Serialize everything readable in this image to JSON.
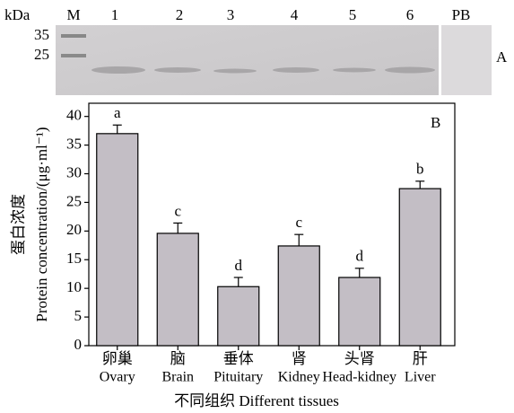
{
  "blot": {
    "unit": "kDa",
    "ladder": "M",
    "markers": [
      "35",
      "25"
    ],
    "lanes": [
      "1",
      "2",
      "3",
      "4",
      "5",
      "6"
    ],
    "control": "PB",
    "panel_label": "A"
  },
  "chart_data": {
    "type": "bar",
    "panel_label": "B",
    "y_label": [
      "蛋白浓度",
      "Protein concentration/(μg·ml⁻¹)"
    ],
    "x_label": "不同组织 Different tissues",
    "categories_zh": [
      "卵巢",
      "脑",
      "垂体",
      "肾",
      "头肾",
      "肝"
    ],
    "categories": [
      "Ovary",
      "Brain",
      "Pituitary",
      "Kidney",
      "Head-kidney",
      "Liver"
    ],
    "values": [
      37,
      19.6,
      10.3,
      17.4,
      11.9,
      27.4
    ],
    "errors": [
      1.5,
      1.8,
      1.6,
      2,
      1.6,
      1.3
    ],
    "letters": [
      "a",
      "c",
      "d",
      "c",
      "d",
      "b"
    ],
    "color": "#c3bec5",
    "ylim": [
      0,
      42.3
    ],
    "yticks": [
      0,
      5,
      10,
      15,
      20,
      25,
      30,
      35,
      40
    ]
  }
}
